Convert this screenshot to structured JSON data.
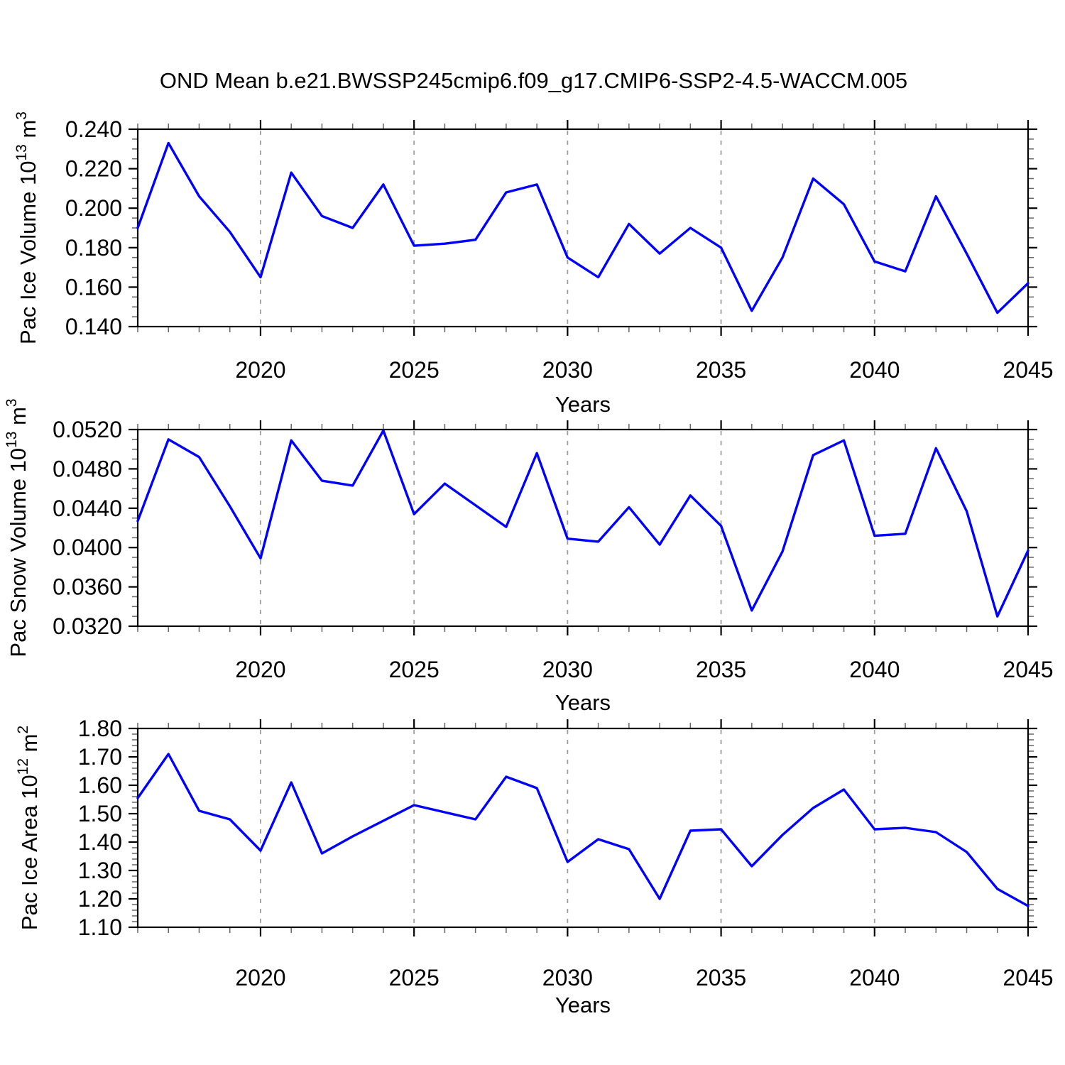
{
  "chart_data": {
    "type": "line",
    "title": "OND Mean b.e21.BWSSP245cmip6.f09_g17.CMIP6-SSP2-4.5-WACCM.005",
    "xlabel": "Years",
    "x": [
      2016,
      2017,
      2018,
      2019,
      2020,
      2021,
      2022,
      2023,
      2024,
      2025,
      2026,
      2027,
      2028,
      2029,
      2030,
      2031,
      2032,
      2033,
      2034,
      2035,
      2036,
      2037,
      2038,
      2039,
      2040,
      2041,
      2042,
      2043,
      2044,
      2045
    ],
    "xlim": [
      2016,
      2045
    ],
    "x_major_ticks": [
      2020,
      2025,
      2030,
      2035,
      2040,
      2045
    ],
    "x_tick_labels": [
      "2020",
      "2025",
      "2030",
      "2035",
      "2040",
      "2045"
    ],
    "x_minor_step": 1,
    "dashed_gridline_years": [
      2020,
      2025,
      2030,
      2035,
      2040
    ],
    "grid": "vertical dashed gridlines at 5-year major ticks",
    "legend": "none",
    "line_color": "#0000ff",
    "background": "#ffffff",
    "panels": [
      {
        "id": "ice-volume",
        "ylabel": "Pac Ice Volume 10^13 m^3",
        "ylabel_runs": [
          {
            "t": "Pac Ice Volume 10",
            "sup": false
          },
          {
            "t": "13",
            "sup": true
          },
          {
            "t": " m",
            "sup": false
          },
          {
            "t": "3",
            "sup": true
          }
        ],
        "ylim": [
          0.14,
          0.24
        ],
        "ytick_step": 0.02,
        "yminor_step": 0.005,
        "ytick_labels": [
          "0.240",
          "0.220",
          "0.200",
          "0.180",
          "0.160",
          "0.140"
        ],
        "values": [
          0.19,
          0.233,
          0.206,
          0.188,
          0.165,
          0.218,
          0.196,
          0.19,
          0.212,
          0.181,
          0.182,
          0.184,
          0.208,
          0.212,
          0.175,
          0.165,
          0.192,
          0.177,
          0.19,
          0.18,
          0.148,
          0.175,
          0.215,
          0.202,
          0.173,
          0.168,
          0.206,
          0.177,
          0.147,
          0.162
        ]
      },
      {
        "id": "snow-volume",
        "ylabel": "Pac Snow Volume 10^13 m^3",
        "ylabel_runs": [
          {
            "t": "Pac Snow Volume 10",
            "sup": false
          },
          {
            "t": "13",
            "sup": true
          },
          {
            "t": " m",
            "sup": false
          },
          {
            "t": "3",
            "sup": true
          }
        ],
        "ylim": [
          0.032,
          0.052
        ],
        "ytick_step": 0.004,
        "yminor_step": 0.001,
        "ytick_labels": [
          "0.0520",
          "0.0480",
          "0.0440",
          "0.0400",
          "0.0360",
          "0.0320"
        ],
        "values": [
          0.0427,
          0.051,
          0.0492,
          0.0442,
          0.0389,
          0.0509,
          0.0468,
          0.0463,
          0.0519,
          0.0434,
          0.0465,
          0.0443,
          0.0421,
          0.0496,
          0.0409,
          0.0406,
          0.0441,
          0.0403,
          0.0453,
          0.0422,
          0.0336,
          0.0396,
          0.0494,
          0.0509,
          0.0412,
          0.0414,
          0.0501,
          0.0437,
          0.033,
          0.0397
        ]
      },
      {
        "id": "ice-area",
        "ylabel": "Pac Ice Area 10^12 m^2",
        "ylabel_runs": [
          {
            "t": "Pac Ice Area 10",
            "sup": false
          },
          {
            "t": "12",
            "sup": true
          },
          {
            "t": " m",
            "sup": false
          },
          {
            "t": "2",
            "sup": true
          }
        ],
        "ylim": [
          1.1,
          1.8
        ],
        "ytick_step": 0.1,
        "yminor_step": 0.02,
        "ytick_labels": [
          "1.80",
          "1.70",
          "1.60",
          "1.50",
          "1.40",
          "1.30",
          "1.20",
          "1.10"
        ],
        "values": [
          1.555,
          1.71,
          1.51,
          1.48,
          1.37,
          1.61,
          1.36,
          1.42,
          1.475,
          1.53,
          1.505,
          1.48,
          1.63,
          1.59,
          1.33,
          1.41,
          1.375,
          1.2,
          1.44,
          1.445,
          1.315,
          1.425,
          1.52,
          1.585,
          1.445,
          1.45,
          1.435,
          1.365,
          1.235,
          1.175
        ]
      }
    ]
  }
}
